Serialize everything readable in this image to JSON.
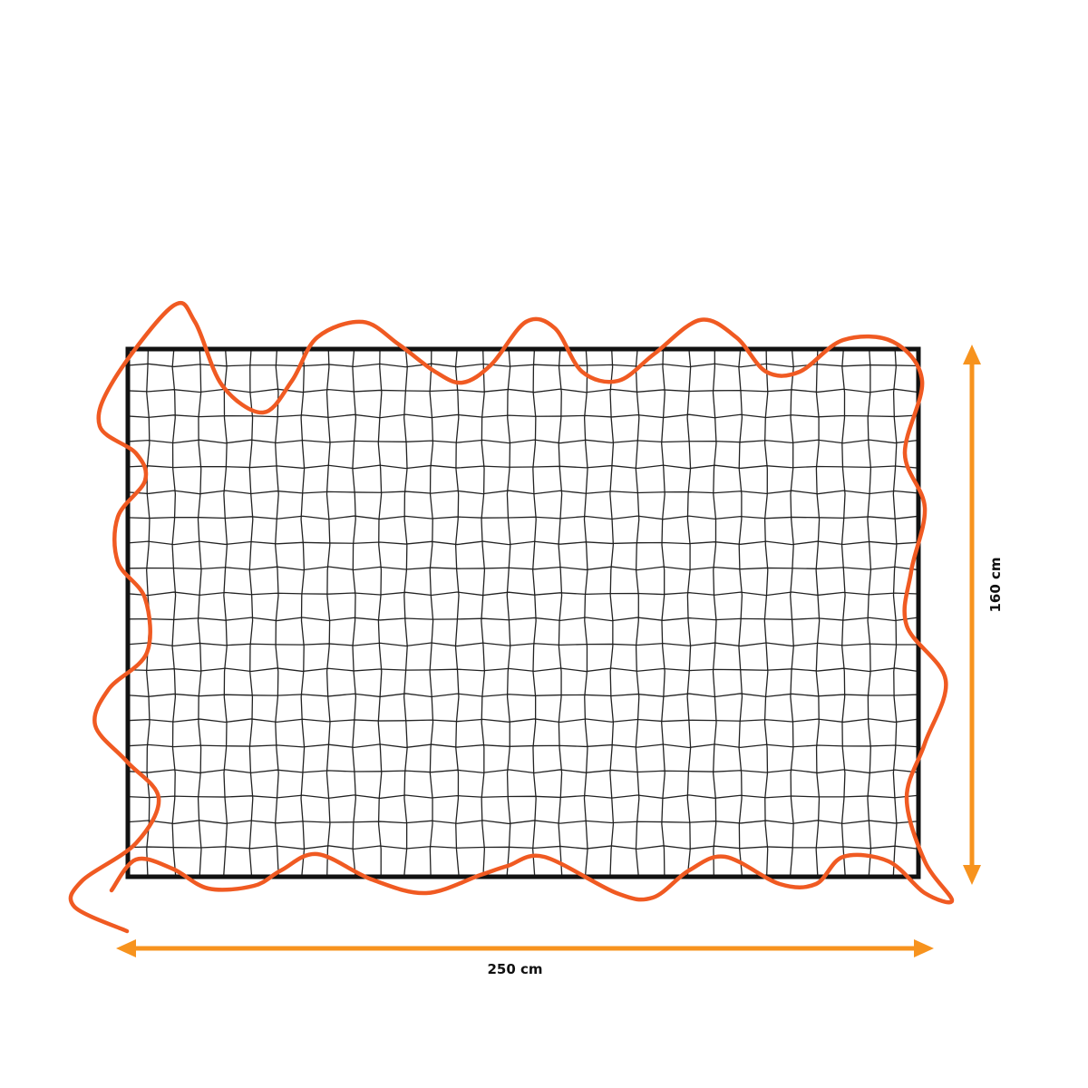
{
  "dimensions": {
    "width_label": "250 cm",
    "height_label": "160 cm"
  },
  "colors": {
    "rope": "#f05a22",
    "arrow": "#f7931e",
    "net": "#222222",
    "frame": "#111111"
  },
  "net": {
    "columns": 31,
    "rows": 21
  }
}
